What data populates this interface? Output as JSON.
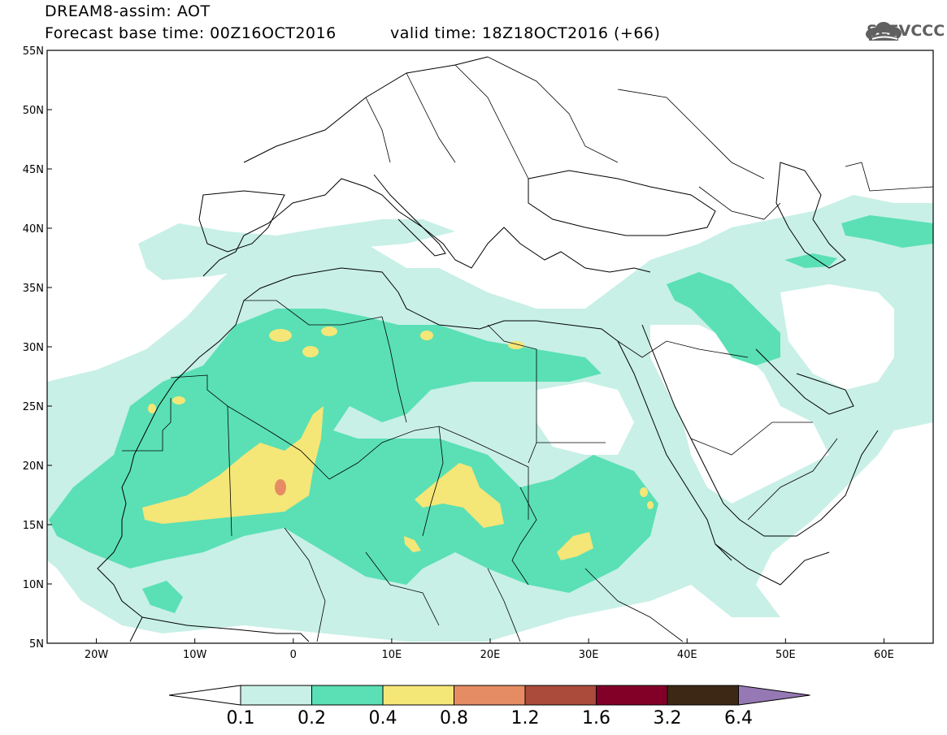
{
  "header": {
    "model_title": "DREAM8-assim: AOT",
    "base_time": "Forecast base time: 00Z16OCT2016",
    "valid_time": "valid time: 18Z18OCT2016 (+66)",
    "logo_text": "SEEVCCC"
  },
  "map": {
    "lon_range": [
      -25,
      65
    ],
    "lat_range": [
      5,
      55
    ],
    "lon_ticks": [
      {
        "value": -20,
        "label": "20W"
      },
      {
        "value": -10,
        "label": "10W"
      },
      {
        "value": 0,
        "label": "0"
      },
      {
        "value": 10,
        "label": "10E"
      },
      {
        "value": 20,
        "label": "20E"
      },
      {
        "value": 30,
        "label": "30E"
      },
      {
        "value": 40,
        "label": "40E"
      },
      {
        "value": 50,
        "label": "50E"
      },
      {
        "value": 60,
        "label": "60E"
      }
    ],
    "lat_ticks": [
      {
        "value": 5,
        "label": "5N"
      },
      {
        "value": 10,
        "label": "10N"
      },
      {
        "value": 15,
        "label": "15N"
      },
      {
        "value": 20,
        "label": "20N"
      },
      {
        "value": 25,
        "label": "25N"
      },
      {
        "value": 30,
        "label": "30N"
      },
      {
        "value": 35,
        "label": "35N"
      },
      {
        "value": 40,
        "label": "40N"
      },
      {
        "value": 45,
        "label": "45N"
      },
      {
        "value": 50,
        "label": "50N"
      },
      {
        "value": 55,
        "label": "55N"
      }
    ]
  },
  "colorbar": {
    "levels": [
      "0.1",
      "0.2",
      "0.4",
      "0.8",
      "1.2",
      "1.6",
      "3.2",
      "6.4"
    ],
    "colors": [
      "#ffffff",
      "#c8f0e6",
      "#5ae0b4",
      "#f5e678",
      "#e68c64",
      "#aa4b3c",
      "#820028",
      "#3c2814",
      "#9678b4"
    ]
  },
  "colors": {
    "light_teal": "#c8f0e6",
    "teal": "#5ae0b4",
    "yellow": "#f5e678",
    "orange": "#e68c64",
    "border": "#000000"
  }
}
